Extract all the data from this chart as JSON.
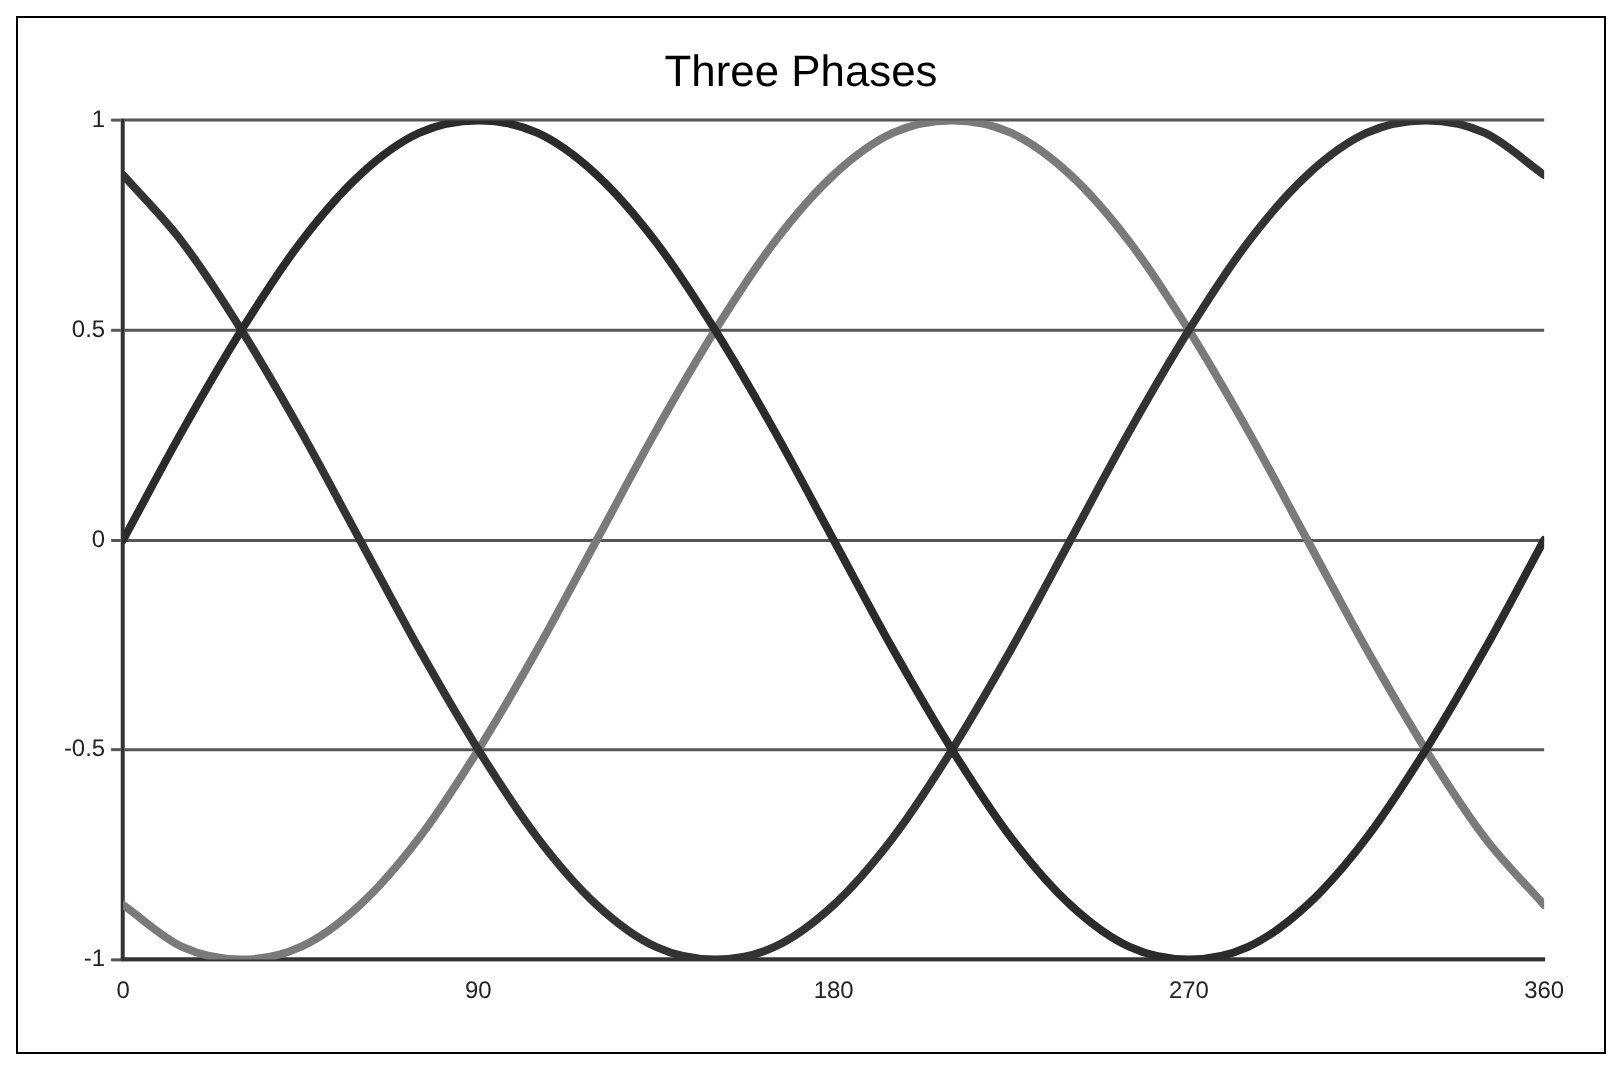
{
  "chart_data": {
    "type": "line",
    "title": "Three Phases",
    "x": [
      0,
      15,
      30,
      45,
      60,
      75,
      90,
      105,
      120,
      135,
      150,
      165,
      180,
      195,
      210,
      225,
      240,
      255,
      270,
      285,
      300,
      315,
      330,
      345,
      360
    ],
    "series": [
      {
        "color": "#2b2b2b",
        "values": [
          0,
          0.26,
          0.5,
          0.71,
          0.87,
          0.97,
          1,
          0.97,
          0.87,
          0.71,
          0.5,
          0.26,
          0,
          -0.26,
          -0.5,
          -0.71,
          -0.87,
          -0.97,
          -1,
          -0.97,
          -0.87,
          -0.71,
          -0.5,
          -0.26,
          0
        ]
      },
      {
        "color": "#333333",
        "values": [
          0.87,
          0.71,
          0.5,
          0.26,
          0,
          -0.26,
          -0.5,
          -0.71,
          -0.87,
          -0.97,
          -1,
          -0.97,
          -0.87,
          -0.71,
          -0.5,
          -0.26,
          0,
          0.26,
          0.5,
          0.71,
          0.87,
          0.97,
          1,
          0.97,
          0.87
        ]
      },
      {
        "color": "#7a7a7a",
        "values": [
          -0.87,
          -0.97,
          -1,
          -0.97,
          -0.87,
          -0.71,
          -0.5,
          -0.26,
          0,
          0.26,
          0.5,
          0.71,
          0.87,
          0.97,
          1,
          0.97,
          0.87,
          0.71,
          0.5,
          0.26,
          0,
          -0.26,
          -0.5,
          -0.71,
          -0.87
        ]
      }
    ],
    "xlim": [
      0,
      360
    ],
    "xticks": [
      0,
      90,
      180,
      270,
      360
    ],
    "ylim": [
      -1,
      1
    ],
    "yticks": [
      -1,
      -0.5,
      0,
      0.5,
      1
    ],
    "grid": "y",
    "marker": "none",
    "line_style": "solid",
    "legend": false
  }
}
